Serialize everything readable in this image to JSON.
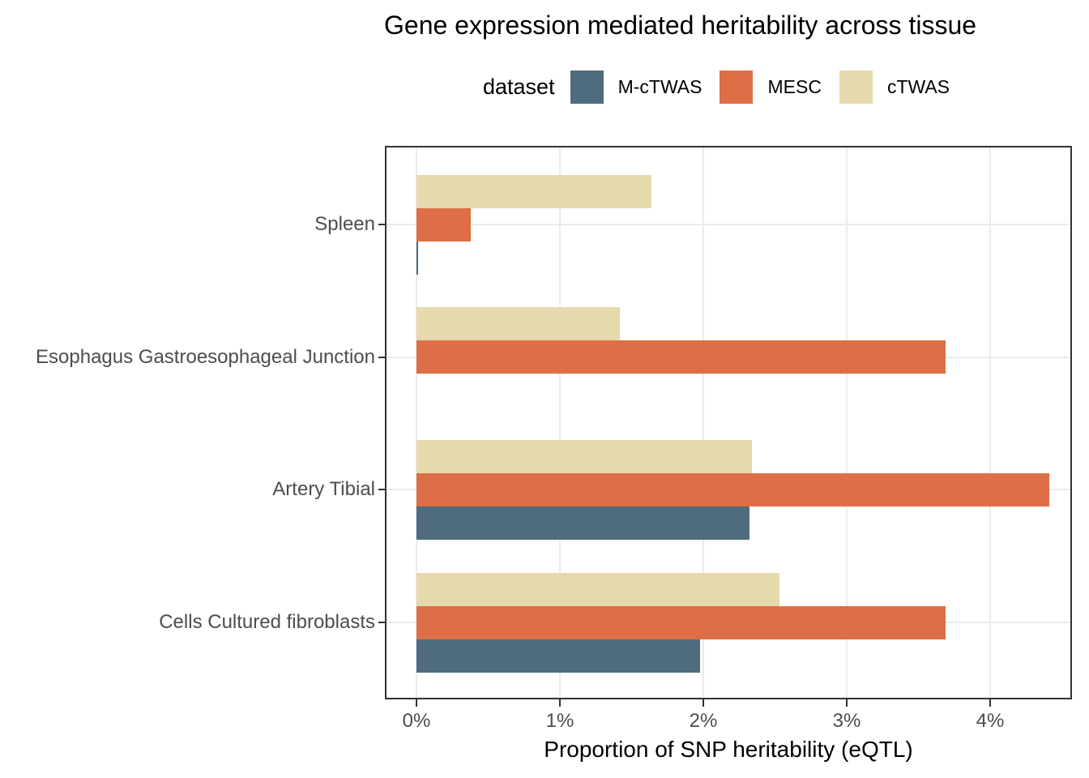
{
  "title": "Gene expression mediated heritability across tissue",
  "legend": {
    "label": "dataset",
    "position": "top"
  },
  "colors": {
    "m_ctwas": "#4e6c7d",
    "mesc": "#dd6e45",
    "ctwas": "#e6d9ad",
    "grid": "#ebebeb",
    "panel_border": "#333333",
    "axis_text": "#4d4d4d"
  },
  "chart_data": {
    "type": "bar",
    "orientation": "horizontal",
    "title": "Gene expression mediated heritability across tissue",
    "xlabel": "Proportion of SNP heritability (eQTL)",
    "ylabel": "",
    "categories": [
      "Spleen",
      "Esophagus Gastroesophageal Junction",
      "Artery Tibial",
      "Cells Cultured fibroblasts"
    ],
    "series": [
      {
        "name": "M-cTWAS",
        "color": "#4e6c7d",
        "values": [
          0.01,
          0,
          2.32,
          1.98
        ]
      },
      {
        "name": "MESC",
        "color": "#dd6e45",
        "values": [
          0.38,
          3.69,
          4.41,
          3.69
        ]
      },
      {
        "name": "cTWAS",
        "color": "#e6d9ad",
        "values": [
          1.64,
          1.42,
          2.34,
          2.53
        ]
      }
    ],
    "x_ticks": [
      "0%",
      "1%",
      "2%",
      "3%",
      "4%"
    ],
    "x_tick_values": [
      0,
      1,
      2,
      3,
      4
    ],
    "xlim": [
      -0.22,
      4.57
    ],
    "grid": "major only, light gray",
    "legend_position": "top",
    "bar_order_top_to_bottom": [
      "cTWAS",
      "MESC",
      "M-cTWAS"
    ]
  }
}
